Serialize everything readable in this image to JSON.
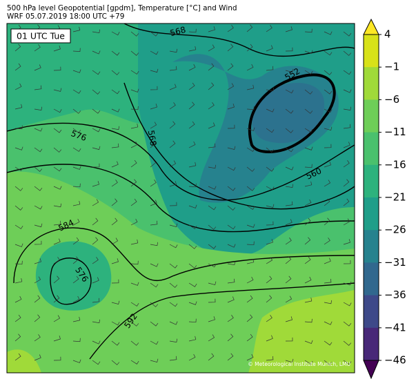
{
  "header": {
    "title": "500 hPa level Geopotential [gpdm], Temperature [°C] and Wind",
    "subtitle": "WRF 05.07.2019 18:00 UTC +79"
  },
  "map": {
    "time_label": "01 UTC Tue",
    "contour_labels": [
      "568",
      "552",
      "576",
      "568",
      "560",
      "584",
      "576",
      "592"
    ],
    "credit": "© Meteorological Institute Munich, LMU"
  },
  "colorbar": {
    "labels": [
      "4",
      "−1",
      "−6",
      "−11",
      "−16",
      "−21",
      "−26",
      "−31",
      "−36",
      "−41",
      "−46"
    ],
    "colors": [
      "#fde725",
      "#d8e219",
      "#a0da39",
      "#6ece58",
      "#4ac16d",
      "#2db27d",
      "#1f9e89",
      "#26828e",
      "#31688e",
      "#3e4989",
      "#482878",
      "#440154"
    ]
  }
}
